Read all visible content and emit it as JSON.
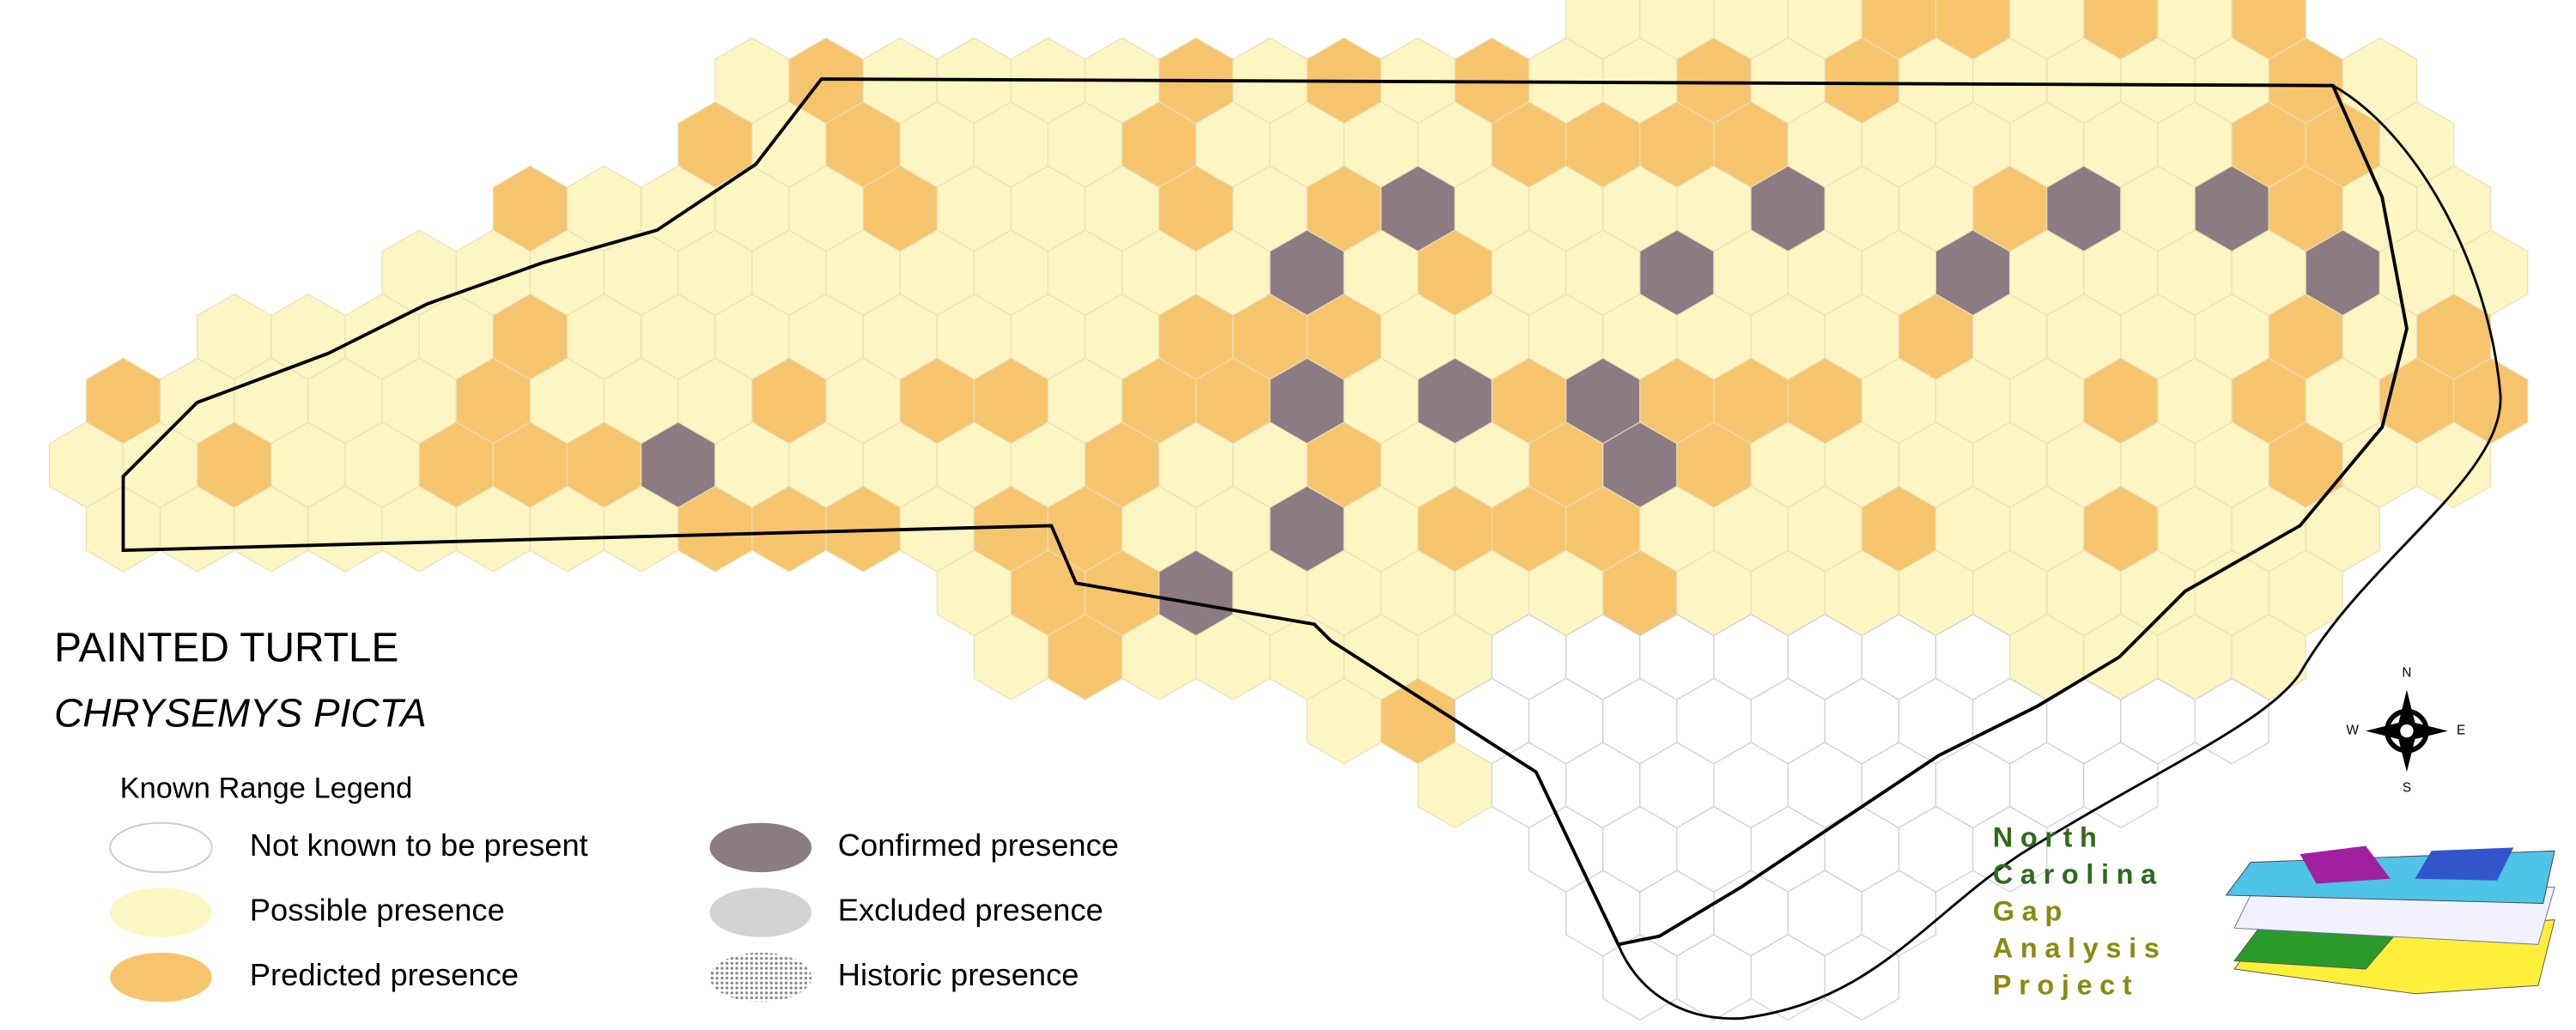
{
  "title": "PAINTED TURTLE",
  "species": "CHRYSEMYS PICTA",
  "legend": {
    "title": "Known Range Legend",
    "items": [
      {
        "label": "Not known to be present",
        "color": "#ffffff"
      },
      {
        "label": "Possible presence",
        "color": "#fdf5c2"
      },
      {
        "label": "Predicted presence",
        "color": "#f7c46e"
      },
      {
        "label": "Confirmed presence",
        "color": "#8c7b82"
      },
      {
        "label": "Excluded presence",
        "color": "#d3d3d3"
      },
      {
        "label": "Historic presence",
        "color": "#bdbdbd"
      }
    ]
  },
  "compass": {
    "n": "N",
    "w": "W",
    "e": "E",
    "s": "S"
  },
  "logo": {
    "lines": [
      "North",
      "Carolina",
      "Gap",
      "Analysis",
      "Project"
    ]
  }
}
